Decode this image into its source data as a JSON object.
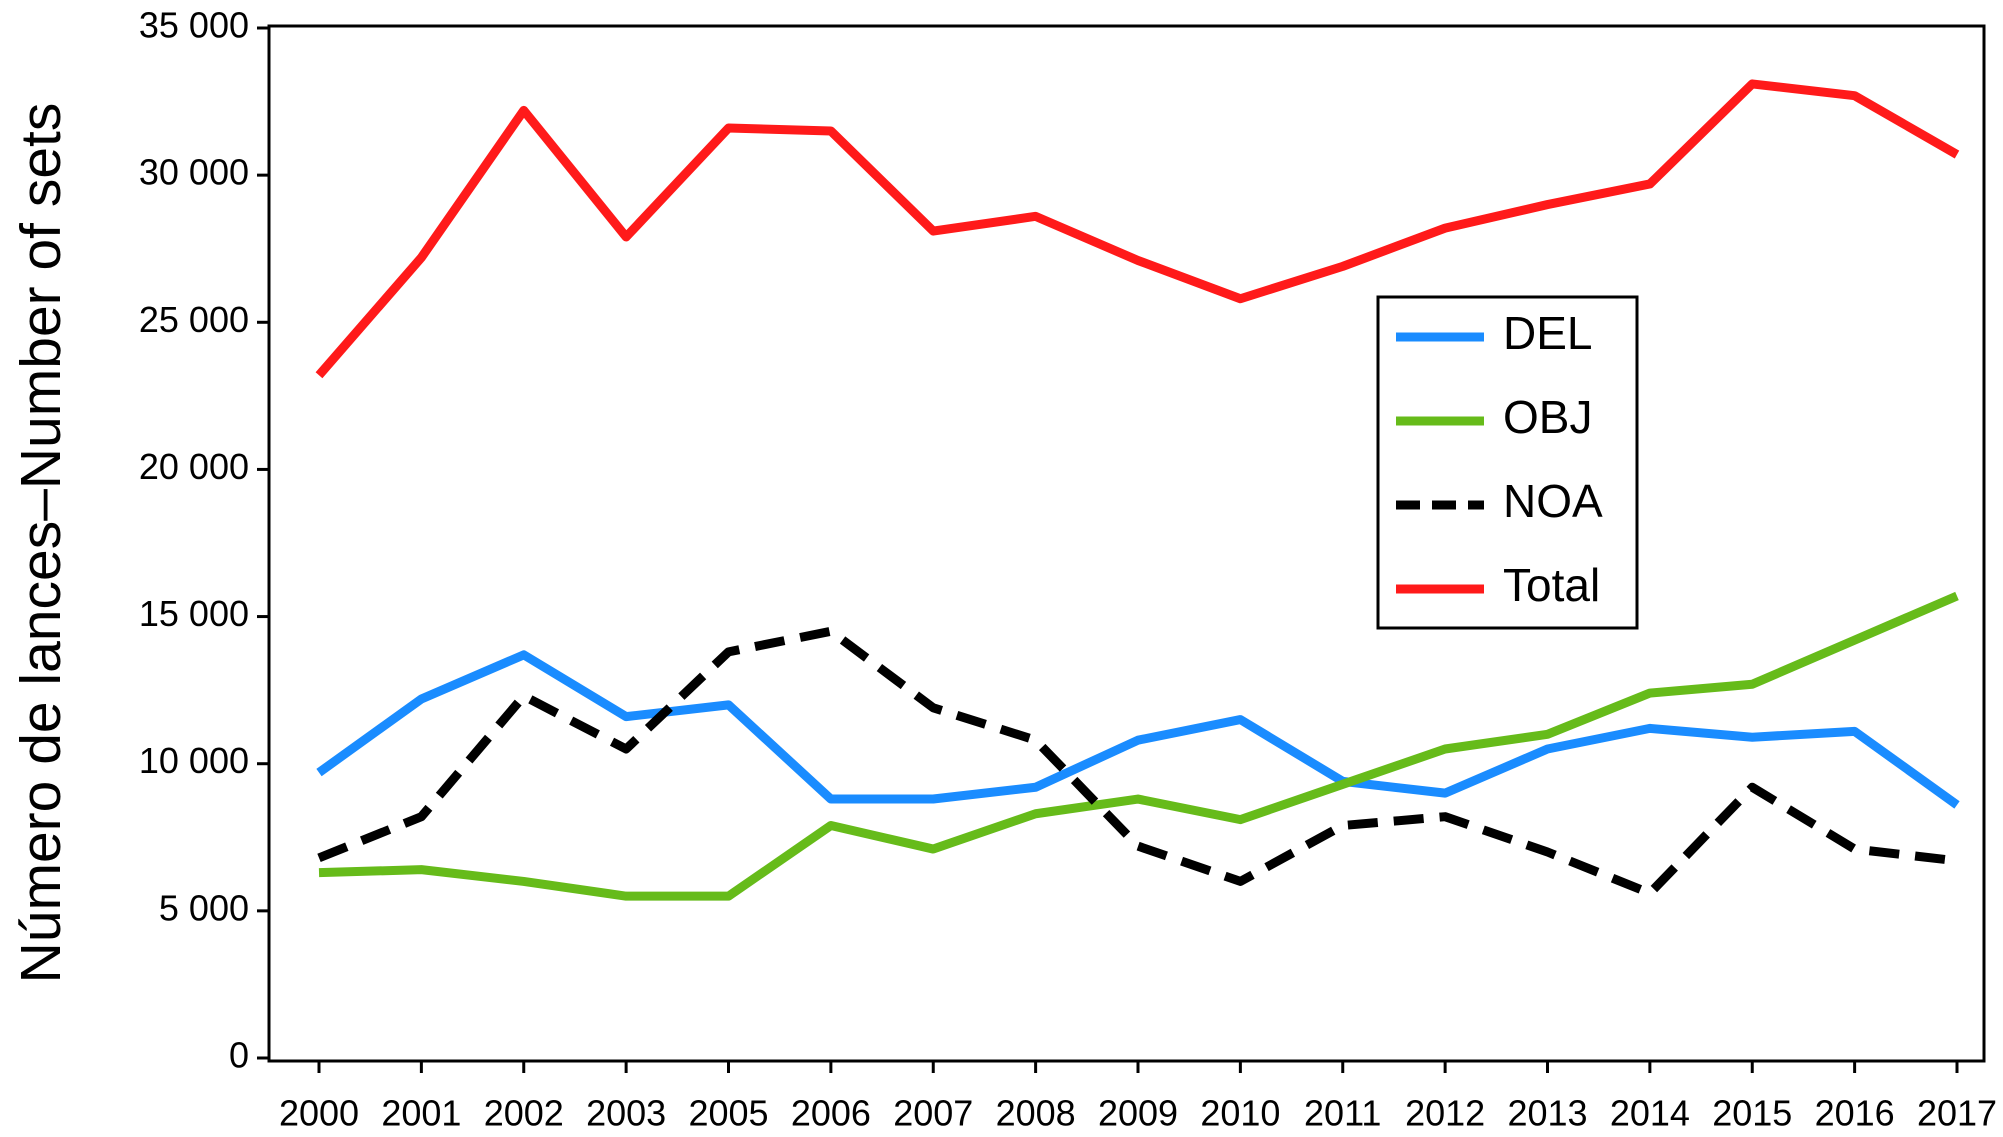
{
  "chart_data": {
    "type": "line",
    "y_label": "Número de lances–Number of sets",
    "categories": [
      "2000",
      "2001",
      "2002",
      "2003",
      "2005",
      "2006",
      "2007",
      "2008",
      "2009",
      "2010",
      "2011",
      "2012",
      "2013",
      "2014",
      "2015",
      "2016",
      "2017"
    ],
    "series": [
      {
        "name": "DEL",
        "color": "#1a8cff",
        "style": "solid",
        "values": [
          9700,
          12200,
          13700,
          11600,
          12000,
          8800,
          8800,
          9200,
          10800,
          11500,
          9400,
          9000,
          10500,
          11200,
          10900,
          11100,
          8600
        ]
      },
      {
        "name": "OBJ",
        "color": "#66bb1a",
        "style": "solid",
        "values": [
          6300,
          6400,
          6000,
          5500,
          5500,
          7900,
          7100,
          8300,
          8800,
          8100,
          9300,
          10500,
          11000,
          12400,
          12700,
          14200,
          15700
        ]
      },
      {
        "name": "NOA",
        "color": "#000000",
        "style": "dashed",
        "values": [
          6800,
          8200,
          12300,
          10500,
          13800,
          14500,
          11900,
          10800,
          7200,
          6000,
          7900,
          8200,
          7000,
          5600,
          9200,
          7100,
          6700
        ]
      },
      {
        "name": "Total",
        "color": "#ff1a1a",
        "style": "solid",
        "values": [
          23200,
          27200,
          32200,
          27900,
          31600,
          31500,
          28100,
          28600,
          27100,
          25800,
          26900,
          28200,
          29000,
          29700,
          33100,
          32700,
          30700
        ]
      }
    ],
    "ylim": [
      0,
      35000
    ],
    "yticks": [
      0,
      {
        "value": 5000,
        "label": "5 000"
      },
      {
        "value": 10000,
        "label": "10 000"
      },
      {
        "value": 15000,
        "label": "15 000"
      },
      {
        "value": 20000,
        "label": "20 000"
      },
      {
        "value": 25000,
        "label": "25 000"
      },
      {
        "value": 30000,
        "label": "30 000"
      },
      {
        "value": 35000,
        "label": "35 000"
      }
    ],
    "grid": false,
    "legend": "center right"
  }
}
